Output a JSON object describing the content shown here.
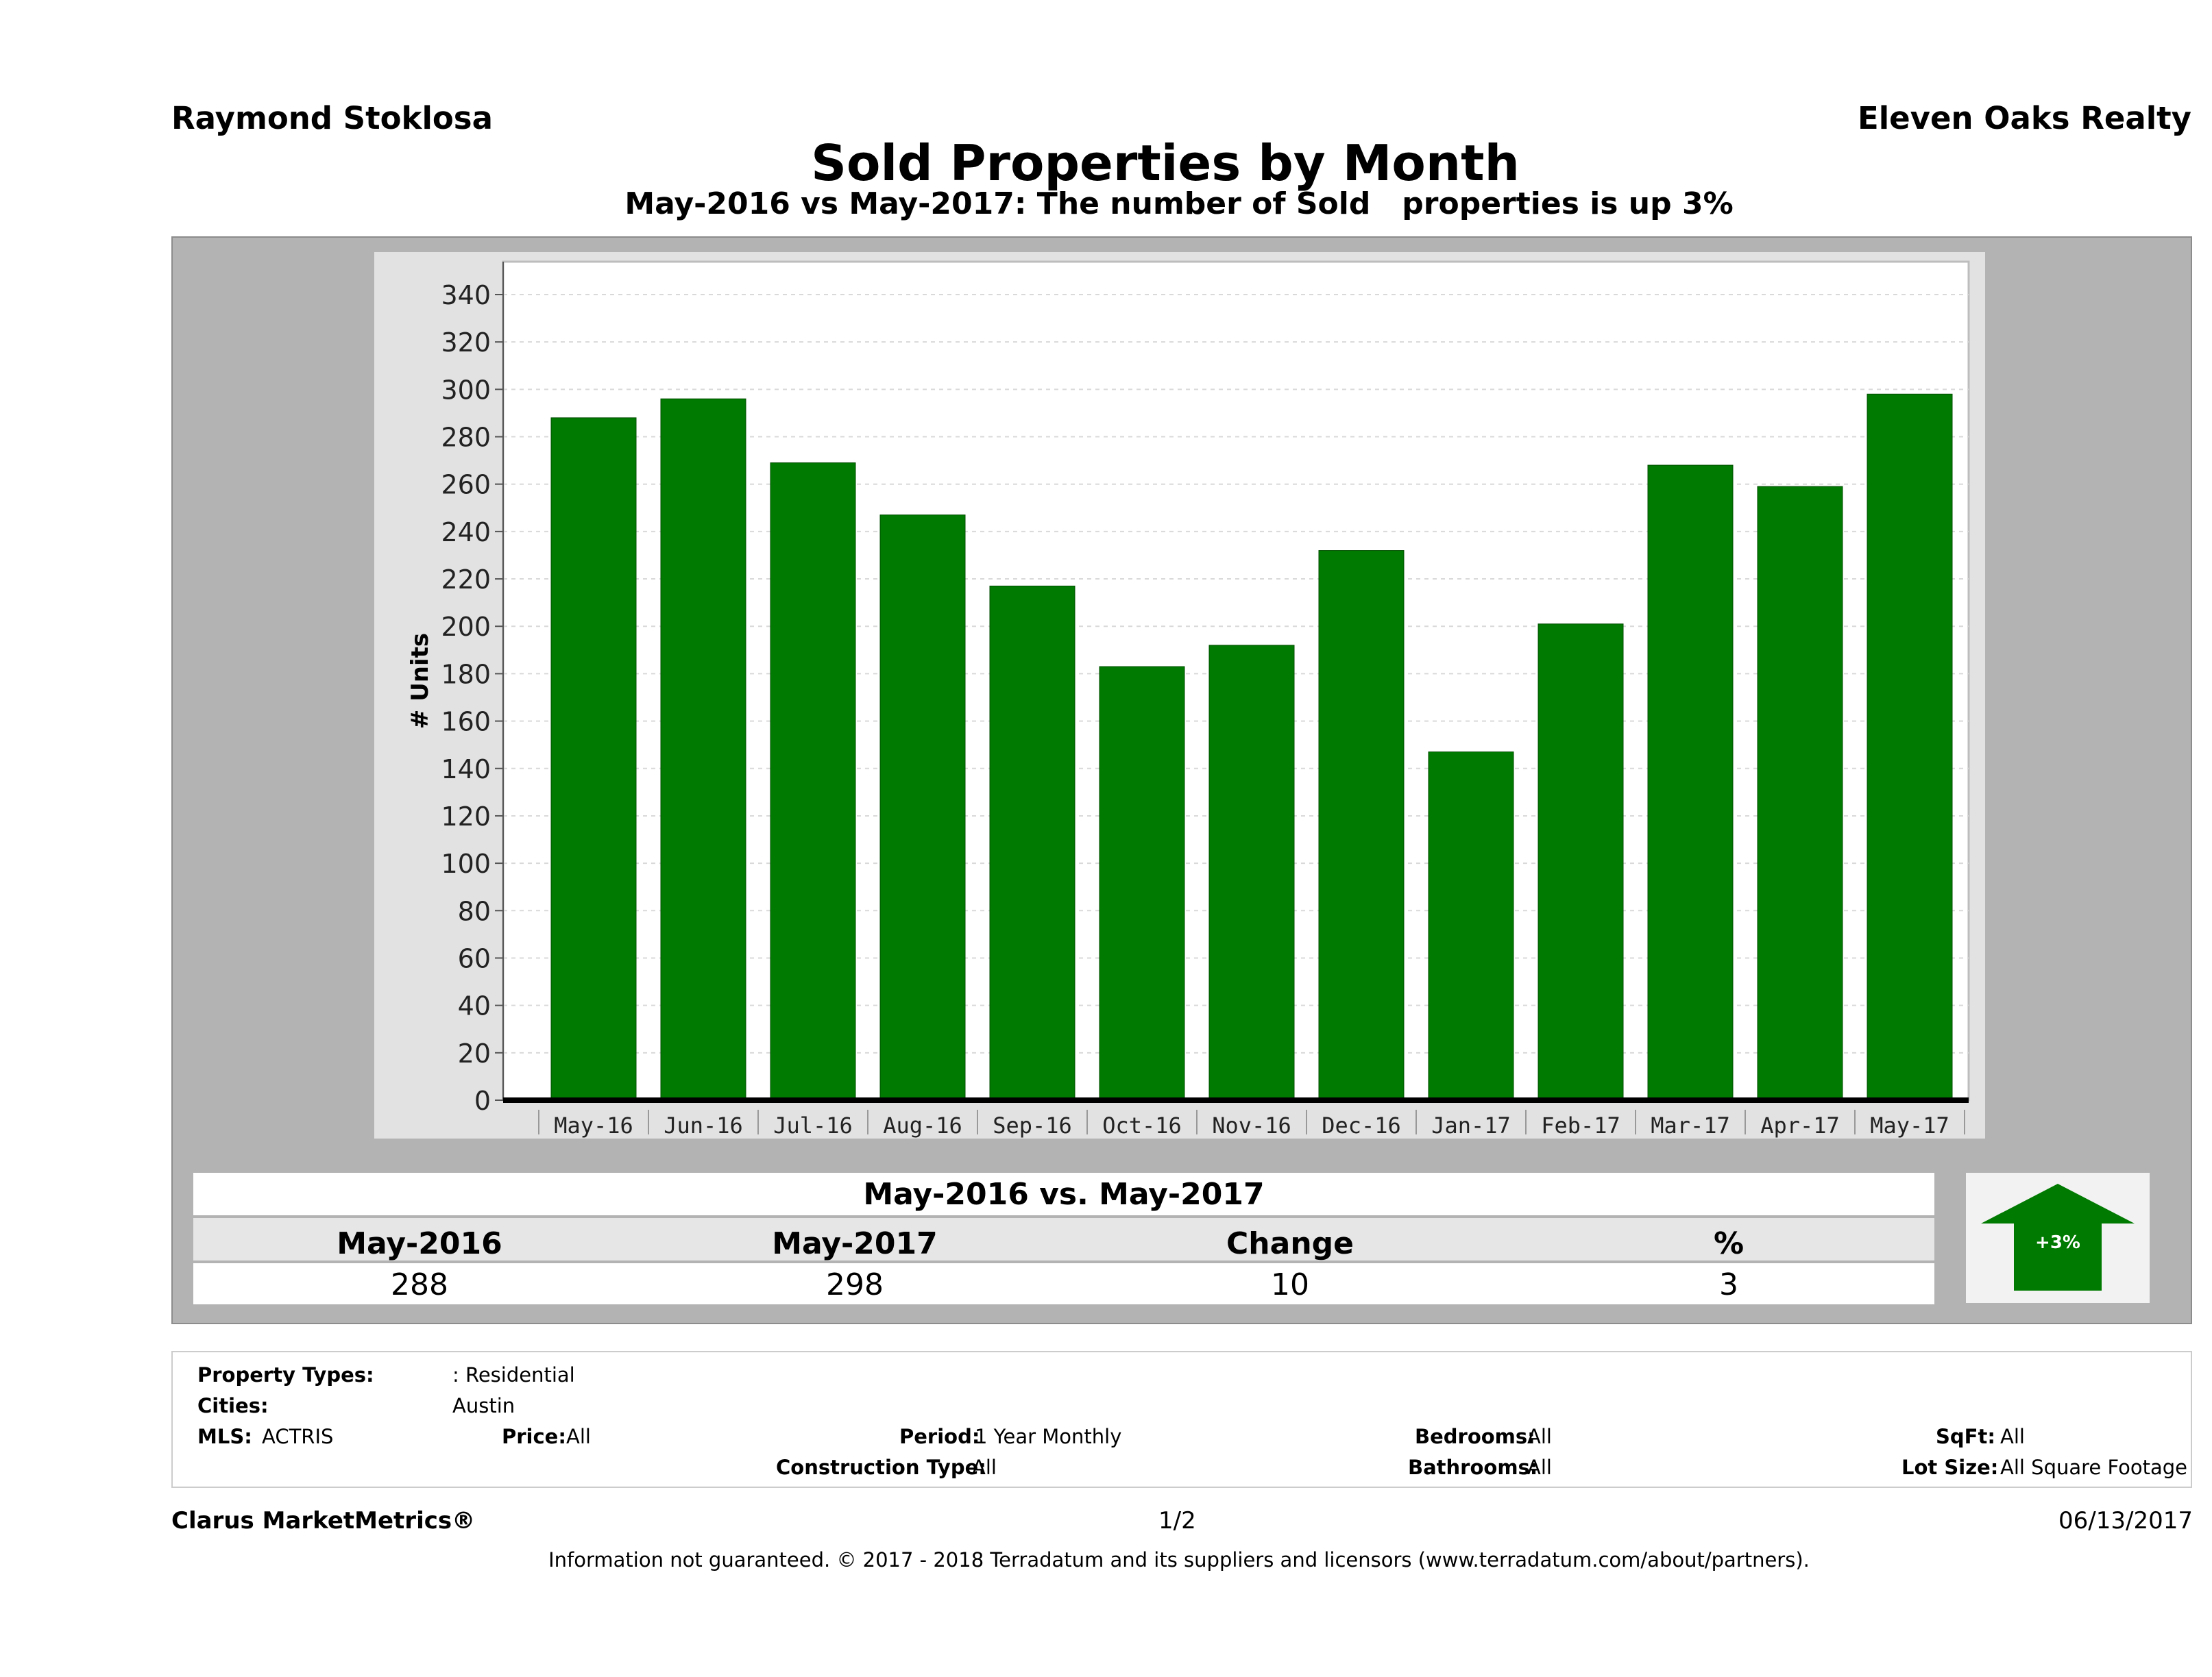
{
  "header": {
    "agent": "Raymond Stoklosa",
    "company": "Eleven Oaks Realty",
    "title": "Sold Properties by Month",
    "subtitle": "May-2016 vs May-2017: The number of Sold   properties is up 3%"
  },
  "chart_data": {
    "type": "bar",
    "title": "Sold Properties by Month",
    "xlabel": "",
    "ylabel": "# Units",
    "ylim": [
      0,
      340
    ],
    "yticks": [
      0,
      20,
      40,
      60,
      80,
      100,
      120,
      140,
      160,
      180,
      200,
      220,
      240,
      260,
      280,
      300,
      320,
      340
    ],
    "grid": true,
    "categories": [
      "May-16",
      "Jun-16",
      "Jul-16",
      "Aug-16",
      "Sep-16",
      "Oct-16",
      "Nov-16",
      "Dec-16",
      "Jan-17",
      "Feb-17",
      "Mar-17",
      "Apr-17",
      "May-17"
    ],
    "values": [
      288,
      296,
      269,
      247,
      217,
      183,
      192,
      232,
      147,
      201,
      268,
      259,
      298
    ],
    "bar_color": "#007a00"
  },
  "summary": {
    "title": "May-2016 vs. May-2017",
    "headers": [
      "May-2016",
      "May-2017",
      "Change",
      "%"
    ],
    "values": [
      "288",
      "298",
      "10",
      "3"
    ],
    "arrow_label": "+3%",
    "arrow_color": "#007a00"
  },
  "details": {
    "property_types_label": "Property Types:",
    "property_types_value": ": Residential",
    "cities_label": "Cities:",
    "cities_value": "Austin",
    "mls_label": "MLS:",
    "mls_value": "ACTRIS",
    "price_label": "Price:",
    "price_value": "All",
    "period_label": "Period:",
    "period_value": "1 Year Monthly",
    "construction_label": "Construction Type:",
    "construction_value": "All",
    "bedrooms_label": "Bedrooms:",
    "bedrooms_value": "All",
    "bathrooms_label": "Bathrooms:",
    "bathrooms_value": "All",
    "sqft_label": "SqFt:",
    "sqft_value": "All",
    "lotsize_label": "Lot Size:",
    "lotsize_value": "All Square Footage"
  },
  "footer": {
    "brand": "Clarus MarketMetrics®",
    "page": "1/2",
    "date": "06/13/2017",
    "disclaimer": "Information not guaranteed. © 2017 - 2018 Terradatum and its suppliers and licensors (www.terradatum.com/about/partners)."
  }
}
